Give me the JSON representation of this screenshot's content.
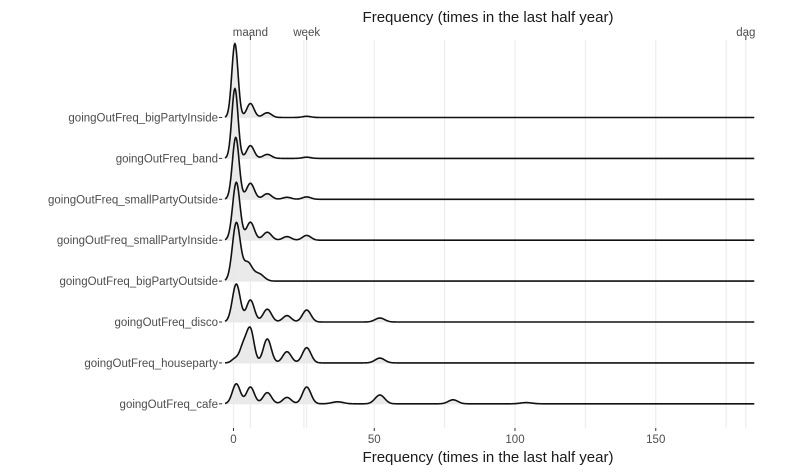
{
  "chart_data": {
    "type": "ridgeline",
    "title": "",
    "xlabel": "Frequency (times in the last half year)",
    "xlabel_top": "Frequency (times in the last half year)",
    "ylabel": "",
    "xlim": [
      -4,
      186
    ],
    "x_ticks": [
      0,
      50,
      100,
      150
    ],
    "x_tick_labels": [
      "0",
      "50",
      "100",
      "150"
    ],
    "top_ticks": [
      {
        "label": "maand",
        "x": 6
      },
      {
        "label": "week",
        "x": 26
      },
      {
        "label": "dag",
        "x": 182
      }
    ],
    "grid": true,
    "categories": [
      "goingOutFreq_bigPartyInside",
      "goingOutFreq_band",
      "goingOutFreq_smallPartyOutside",
      "goingOutFreq_smallPartyInside",
      "goingOutFreq_bigPartyOutside",
      "goingOutFreq_disco",
      "goingOutFreq_houseparty",
      "goingOutFreq_cafe"
    ],
    "series": [
      {
        "category": "goingOutFreq_bigPartyInside",
        "peaks": [
          [
            0.5,
            1.85,
            1.1
          ],
          [
            6,
            0.35,
            1.3
          ],
          [
            12,
            0.12,
            1.5
          ],
          [
            26,
            0.03,
            1.5
          ]
        ]
      },
      {
        "category": "goingOutFreq_band",
        "peaks": [
          [
            0.5,
            1.75,
            1.1
          ],
          [
            6,
            0.32,
            1.3
          ],
          [
            12,
            0.1,
            1.5
          ],
          [
            26,
            0.03,
            1.5
          ]
        ]
      },
      {
        "category": "goingOutFreq_smallPartyOutside",
        "peaks": [
          [
            0.8,
            1.55,
            1.2
          ],
          [
            6,
            0.4,
            1.4
          ],
          [
            12,
            0.14,
            1.5
          ],
          [
            19,
            0.05,
            1.5
          ],
          [
            26,
            0.06,
            1.5
          ]
        ]
      },
      {
        "category": "goingOutFreq_smallPartyInside",
        "peaks": [
          [
            1,
            1.45,
            1.3
          ],
          [
            6,
            0.45,
            1.4
          ],
          [
            12,
            0.2,
            1.5
          ],
          [
            19,
            0.09,
            1.5
          ],
          [
            26,
            0.12,
            1.5
          ]
        ]
      },
      {
        "category": "goingOutFreq_bigPartyOutside",
        "peaks": [
          [
            1,
            1.45,
            1.4
          ],
          [
            5,
            0.45,
            1.6
          ],
          [
            9,
            0.18,
            1.8
          ]
        ]
      },
      {
        "category": "goingOutFreq_disco",
        "peaks": [
          [
            1,
            0.95,
            1.4
          ],
          [
            6,
            0.55,
            1.4
          ],
          [
            12,
            0.32,
            1.5
          ],
          [
            19,
            0.16,
            1.5
          ],
          [
            26,
            0.3,
            1.5
          ],
          [
            52,
            0.1,
            1.7
          ]
        ]
      },
      {
        "category": "goingOutFreq_houseparty",
        "peaks": [
          [
            0.5,
            0.1,
            1.2
          ],
          [
            3.5,
            0.42,
            1.3
          ],
          [
            6,
            0.82,
            1.3
          ],
          [
            12,
            0.6,
            1.4
          ],
          [
            19,
            0.28,
            1.5
          ],
          [
            26,
            0.38,
            1.5
          ],
          [
            52,
            0.12,
            1.7
          ]
        ]
      },
      {
        "category": "goingOutFreq_cafe",
        "peaks": [
          [
            1,
            0.5,
            1.4
          ],
          [
            6,
            0.42,
            1.4
          ],
          [
            12,
            0.28,
            1.5
          ],
          [
            19,
            0.16,
            1.5
          ],
          [
            26,
            0.42,
            1.5
          ],
          [
            37,
            0.05,
            2
          ],
          [
            52,
            0.22,
            1.7
          ],
          [
            78,
            0.1,
            1.7
          ],
          [
            104,
            0.03,
            2
          ]
        ]
      }
    ]
  }
}
